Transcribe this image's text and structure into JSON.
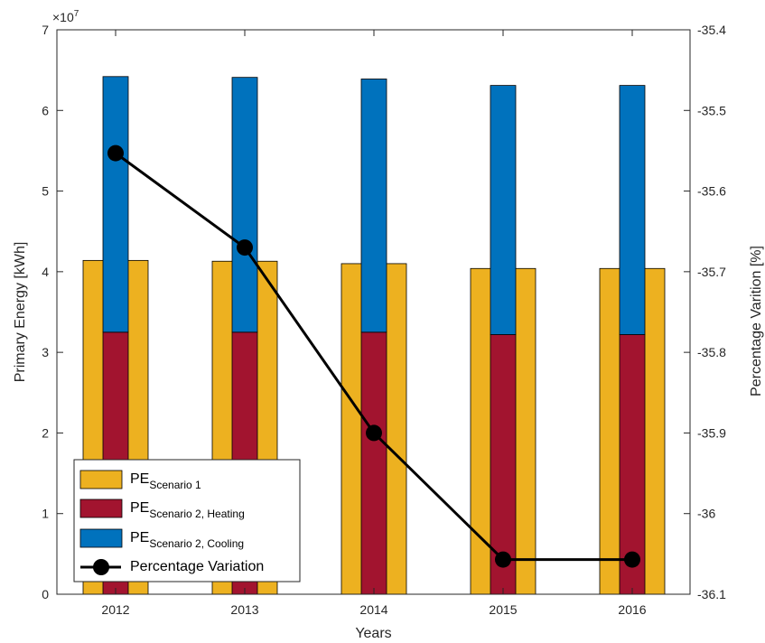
{
  "chart_data": {
    "type": "bar",
    "xlabel": "Years",
    "ylabel_left": "Primary Energy [kWh]",
    "ylabel_right": "Percentage Varition [%]",
    "exponent": {
      "base": "×10",
      "power": "7"
    },
    "categories": [
      "2012",
      "2013",
      "2014",
      "2015",
      "2016"
    ],
    "ylim_left": [
      0,
      7
    ],
    "yticks_left": [
      "0",
      "1",
      "2",
      "3",
      "4",
      "5",
      "6",
      "7"
    ],
    "ylim_right": [
      -36.1,
      -35.4
    ],
    "yticks_right": [
      "-36.1",
      "-36",
      "-35.9",
      "-35.8",
      "-35.7",
      "-35.6",
      "-35.5",
      "-35.4"
    ],
    "grid": false,
    "legend_position": "bottom-left",
    "series": [
      {
        "name": "PE Scenario 1",
        "name_main": "PE",
        "name_sub": "Scenario 1",
        "axis": "left",
        "type": "bar",
        "values": [
          4.14,
          4.13,
          4.1,
          4.04,
          4.04
        ],
        "color": "#EDB120"
      },
      {
        "name": "PE Scenario 2, Heating",
        "name_main": "PE",
        "name_sub": "Scenario 2, Heating",
        "axis": "left",
        "type": "stacked-bar",
        "values": [
          3.25,
          3.25,
          3.25,
          3.22,
          3.22
        ],
        "color": "#A2142F"
      },
      {
        "name": "PE Scenario 2, Cooling",
        "name_main": "PE",
        "name_sub": "Scenario 2, Cooling",
        "axis": "left",
        "type": "stacked-bar",
        "values": [
          3.17,
          3.16,
          3.14,
          3.09,
          3.09
        ],
        "color": "#0072BD"
      },
      {
        "name": "Percentage Variation",
        "name_main": "Percentage Variation",
        "name_sub": "",
        "axis": "right",
        "type": "line",
        "values": [
          -35.553,
          -35.67,
          -35.9,
          -36.057,
          -36.057
        ],
        "color": "#000000"
      }
    ]
  }
}
